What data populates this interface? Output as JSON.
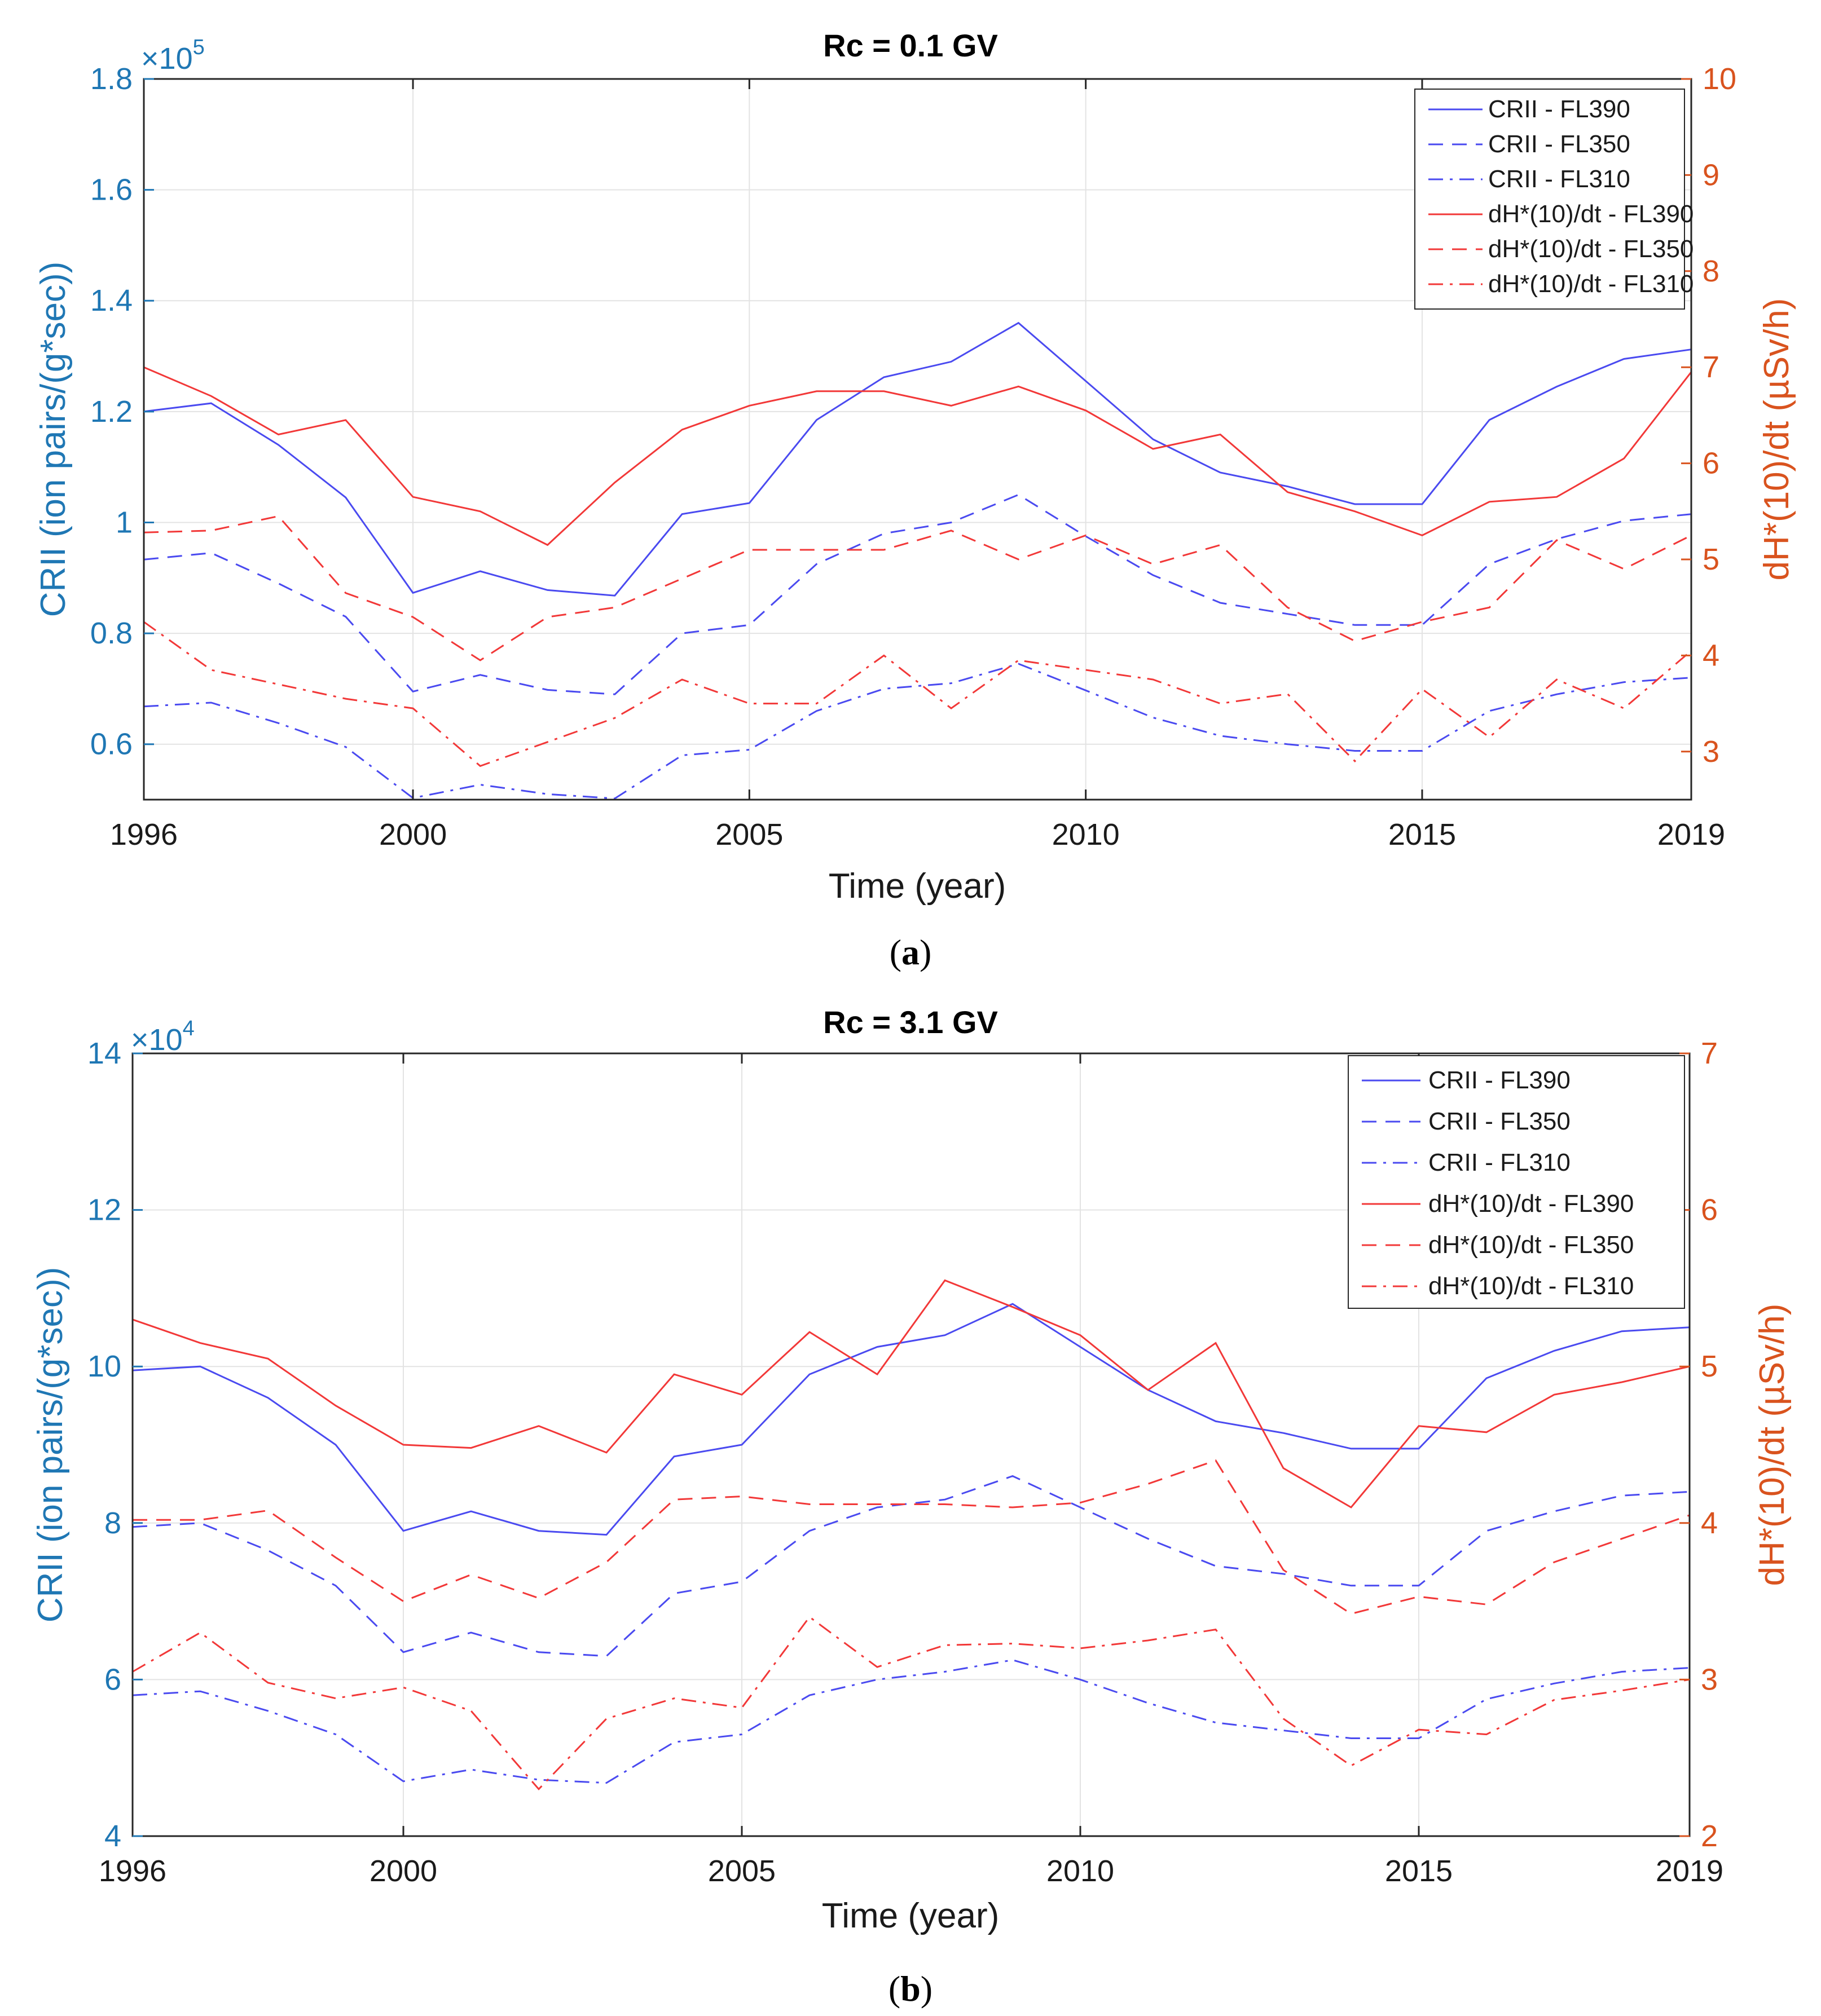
{
  "chart_data": [
    {
      "type": "line",
      "panel": "a",
      "caption": "a",
      "title": "Rc = 0.1 GV",
      "xlabel": "Time (year)",
      "ylabel_left": "CRII (ion pairs/(g*sec))",
      "ylabel_right": "dH*(10)/dt (µSv/h)",
      "left_axis_multiplier": {
        "base": "×10",
        "exponent": "5"
      },
      "xlim": [
        1996,
        2019
      ],
      "ylim_left": [
        0.5,
        1.8
      ],
      "ylim_right": [
        2.5,
        10
      ],
      "xticks": [
        "1996",
        "2000",
        "2005",
        "2010",
        "2015",
        "2019"
      ],
      "yticks_left": [
        "0.6",
        "0.8",
        "1",
        "1.2",
        "1.4",
        "1.6",
        "1.8"
      ],
      "yticks_right": [
        "3",
        "4",
        "5",
        "6",
        "7",
        "8",
        "9",
        "10"
      ],
      "grid": true,
      "legend_position": "top-right",
      "x": [
        1996,
        1997,
        1998,
        1999,
        2000,
        2001,
        2002,
        2003,
        2004,
        2005,
        2006,
        2007,
        2008,
        2009,
        2010,
        2011,
        2012,
        2013,
        2014,
        2015,
        2016,
        2017,
        2018,
        2019
      ],
      "series": [
        {
          "name": "CRII - FL390",
          "axis": "left",
          "color": "#4a4af0",
          "dash": "solid",
          "values": [
            1.2,
            1.215,
            1.14,
            1.045,
            0.873,
            0.912,
            0.878,
            0.868,
            1.015,
            1.035,
            1.185,
            1.262,
            1.29,
            1.36,
            1.255,
            1.15,
            1.09,
            1.065,
            1.033,
            1.033,
            1.185,
            1.245,
            1.295,
            1.312
          ]
        },
        {
          "name": "CRII - FL350",
          "axis": "left",
          "color": "#4a4af0",
          "dash": "dashed",
          "values": [
            0.933,
            0.945,
            0.89,
            0.83,
            0.695,
            0.725,
            0.698,
            0.69,
            0.8,
            0.815,
            0.925,
            0.98,
            1.0,
            1.05,
            0.975,
            0.905,
            0.855,
            0.835,
            0.815,
            0.815,
            0.925,
            0.97,
            1.003,
            1.015
          ]
        },
        {
          "name": "CRII - FL310",
          "axis": "left",
          "color": "#4a4af0",
          "dash": "dashdot",
          "values": [
            0.668,
            0.675,
            0.638,
            0.595,
            0.503,
            0.527,
            0.51,
            0.502,
            0.58,
            0.59,
            0.66,
            0.7,
            0.71,
            0.745,
            0.697,
            0.648,
            0.615,
            0.6,
            0.588,
            0.588,
            0.66,
            0.69,
            0.712,
            0.72
          ]
        },
        {
          "name": "dH*(10)/dt - FL390",
          "axis": "right",
          "color": "#f23838",
          "dash": "solid",
          "values": [
            7.0,
            6.7,
            6.3,
            6.45,
            5.65,
            5.5,
            5.15,
            5.8,
            6.35,
            6.6,
            6.75,
            6.75,
            6.6,
            6.8,
            6.55,
            6.15,
            6.3,
            5.7,
            5.5,
            5.25,
            5.6,
            5.65,
            6.05,
            6.95
          ]
        },
        {
          "name": "dH*(10)/dt - FL350",
          "axis": "right",
          "color": "#f23838",
          "dash": "dashed",
          "values": [
            5.28,
            5.3,
            5.45,
            4.65,
            4.4,
            3.95,
            4.4,
            4.5,
            4.8,
            5.1,
            5.1,
            5.1,
            5.3,
            5.0,
            5.25,
            4.95,
            5.15,
            4.5,
            4.15,
            4.35,
            4.5,
            5.2,
            4.9,
            5.25
          ]
        },
        {
          "name": "dH*(10)/dt - FL310",
          "axis": "right",
          "color": "#f23838",
          "dash": "dashdot",
          "values": [
            4.35,
            3.85,
            3.7,
            3.55,
            3.45,
            2.85,
            3.1,
            3.35,
            3.75,
            3.5,
            3.5,
            4.0,
            3.45,
            3.95,
            3.85,
            3.75,
            3.5,
            3.6,
            2.9,
            3.65,
            3.15,
            3.75,
            3.45,
            4.05
          ]
        }
      ]
    },
    {
      "type": "line",
      "panel": "b",
      "caption": "b",
      "title": "Rc = 3.1 GV",
      "xlabel": "Time (year)",
      "ylabel_left": "CRII (ion pairs/(g*sec))",
      "ylabel_right": "dH*(10)/dt (µSv/h)",
      "left_axis_multiplier": {
        "base": "×10",
        "exponent": "4"
      },
      "xlim": [
        1996,
        2019
      ],
      "ylim_left": [
        4,
        14
      ],
      "ylim_right": [
        2,
        7
      ],
      "xticks": [
        "1996",
        "2000",
        "2005",
        "2010",
        "2015",
        "2019"
      ],
      "yticks_left": [
        "4",
        "6",
        "8",
        "10",
        "12",
        "14"
      ],
      "yticks_right": [
        "2",
        "3",
        "4",
        "5",
        "6",
        "7"
      ],
      "grid": true,
      "legend_position": "top-right",
      "x": [
        1996,
        1997,
        1998,
        1999,
        2000,
        2001,
        2002,
        2003,
        2004,
        2005,
        2006,
        2007,
        2008,
        2009,
        2010,
        2011,
        2012,
        2013,
        2014,
        2015,
        2016,
        2017,
        2018,
        2019
      ],
      "series": [
        {
          "name": "CRII - FL390",
          "axis": "left",
          "color": "#4a4af0",
          "dash": "solid",
          "values": [
            9.95,
            10.0,
            9.6,
            9.0,
            7.9,
            8.15,
            7.9,
            7.85,
            8.85,
            9.0,
            9.9,
            10.25,
            10.4,
            10.8,
            10.25,
            9.7,
            9.3,
            9.15,
            8.95,
            8.95,
            9.85,
            10.2,
            10.45,
            10.5
          ]
        },
        {
          "name": "CRII - FL350",
          "axis": "left",
          "color": "#4a4af0",
          "dash": "dashed",
          "values": [
            7.95,
            8.0,
            7.65,
            7.2,
            6.35,
            6.6,
            6.35,
            6.3,
            7.1,
            7.25,
            7.9,
            8.2,
            8.3,
            8.6,
            8.2,
            7.8,
            7.45,
            7.35,
            7.2,
            7.2,
            7.9,
            8.15,
            8.35,
            8.4
          ]
        },
        {
          "name": "CRII - FL310",
          "axis": "left",
          "color": "#4a4af0",
          "dash": "dashdot",
          "values": [
            5.8,
            5.85,
            5.6,
            5.3,
            4.7,
            4.85,
            4.72,
            4.68,
            5.2,
            5.3,
            5.8,
            6.0,
            6.1,
            6.25,
            6.0,
            5.7,
            5.45,
            5.35,
            5.25,
            5.25,
            5.75,
            5.95,
            6.1,
            6.15
          ]
        },
        {
          "name": "dH*(10)/dt - FL390",
          "axis": "right",
          "color": "#f23838",
          "dash": "solid",
          "values": [
            5.3,
            5.15,
            5.05,
            4.75,
            4.5,
            4.48,
            4.62,
            4.45,
            4.95,
            4.82,
            5.22,
            4.95,
            5.55,
            5.38,
            5.2,
            4.85,
            5.15,
            4.35,
            4.1,
            4.62,
            4.58,
            4.82,
            4.9,
            5.0
          ]
        },
        {
          "name": "dH*(10)/dt - FL350",
          "axis": "right",
          "color": "#f23838",
          "dash": "dashed",
          "values": [
            4.02,
            4.02,
            4.08,
            3.78,
            3.5,
            3.67,
            3.52,
            3.75,
            4.15,
            4.17,
            4.12,
            4.12,
            4.12,
            4.1,
            4.13,
            4.25,
            4.4,
            3.7,
            3.42,
            3.53,
            3.48,
            3.75,
            3.9,
            4.05
          ]
        },
        {
          "name": "dH*(10)/dt - FL310",
          "axis": "right",
          "color": "#f23838",
          "dash": "dashdot",
          "values": [
            3.05,
            3.3,
            2.98,
            2.88,
            2.95,
            2.8,
            2.3,
            2.75,
            2.88,
            2.82,
            3.4,
            3.08,
            3.22,
            3.23,
            3.2,
            3.25,
            3.32,
            2.75,
            2.45,
            2.68,
            2.65,
            2.87,
            2.93,
            3.0
          ]
        }
      ]
    }
  ]
}
